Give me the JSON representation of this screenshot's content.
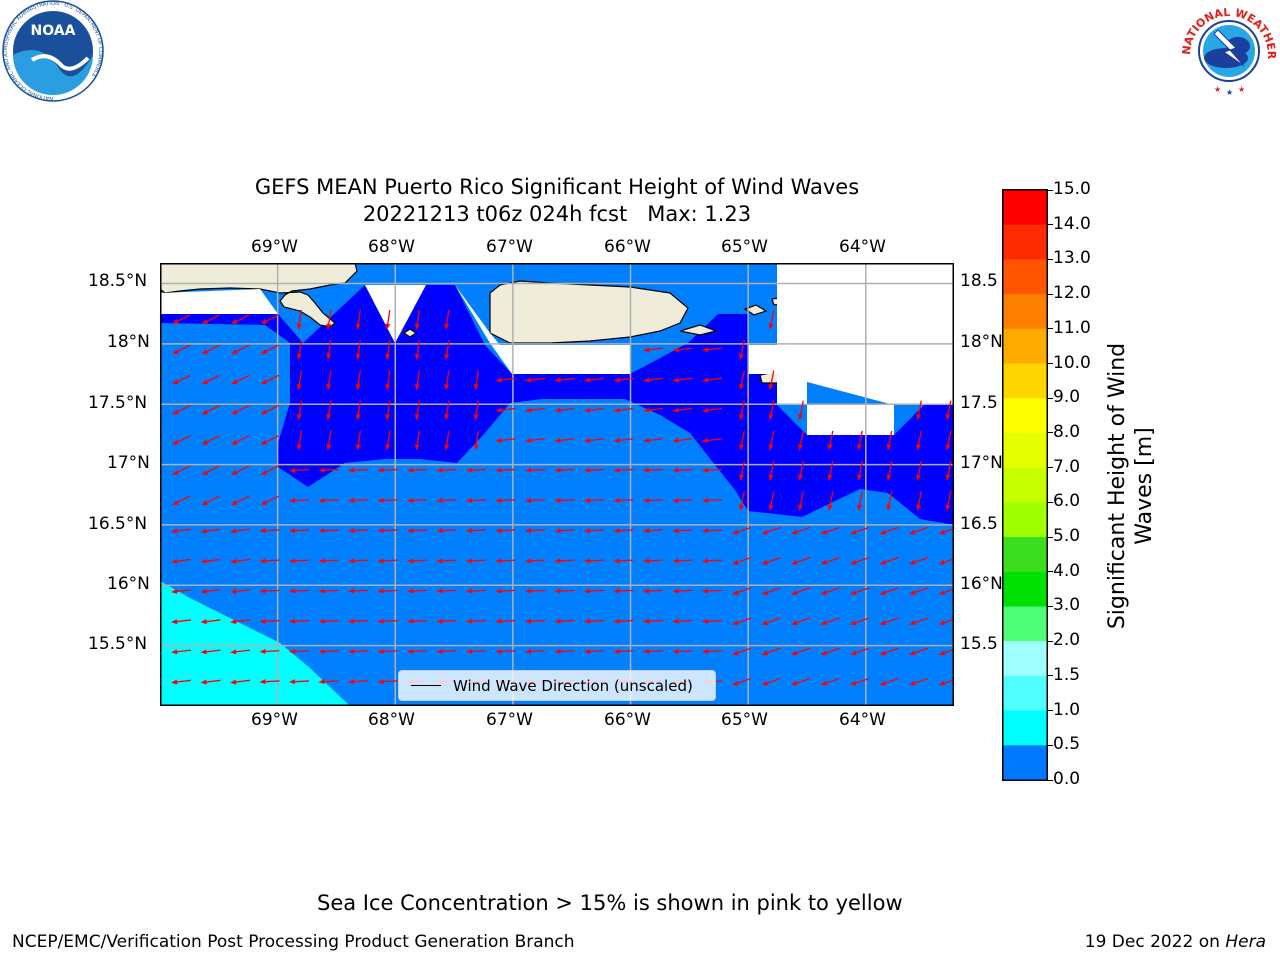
{
  "title_line1": "GEFS MEAN Puerto Rico Significant Height of Wind Waves",
  "title_line2": "20221213 t06z 024h fcst   Max: 1.23",
  "lon_labels": [
    "69°W",
    "68°W",
    "67°W",
    "66°W",
    "65°W",
    "64°W"
  ],
  "lat_labels_left": [
    "18.5°N",
    "18°N",
    "17.5°N",
    "17°N",
    "16.5°N",
    "16°N",
    "15.5°N"
  ],
  "lat_labels_right": [
    "18.5",
    "18°N",
    "17.5",
    "17°N",
    "16.5",
    "16°N",
    "15.5"
  ],
  "legend_label": "Wind Wave Direction (unscaled)",
  "colorbar": {
    "label_line1": "Significant Height of Wind",
    "label_line2": "Waves [m]",
    "ticks": [
      "15.0",
      "14.0",
      "13.0",
      "12.0",
      "11.0",
      "10.0",
      "9.0",
      "8.0",
      "7.0",
      "6.0",
      "5.0",
      "4.0",
      "3.0",
      "2.0",
      "1.5",
      "1.0",
      "0.5",
      "0.0"
    ],
    "colors": [
      "#ff0000",
      "#ff2a00",
      "#ff5500",
      "#ff8000",
      "#ffaa00",
      "#ffd500",
      "#ffff00",
      "#e6ff00",
      "#c8ff00",
      "#a0ff00",
      "#3cdc1e",
      "#00e000",
      "#50ff78",
      "#a0ffff",
      "#50ffff",
      "#00ffff",
      "#0078ff",
      "#0000ff"
    ],
    "colors_order_note_visible": ""
  },
  "map_colors": {
    "land": "#efedd9",
    "level_0": "#0000ff",
    "level_05": "#0080ff",
    "level_10": "#00ffff",
    "arrow": "#ff0000",
    "grid": "#b0b0b0"
  },
  "ice_note": "Sea Ice Concentration > 15% is shown in pink to yellow",
  "footer_left": "NCEP/EMC/Verification Post Processing Product Generation Branch",
  "footer_right_date": "19 Dec 2022 on ",
  "footer_right_host": "Hera",
  "logo_left_text": "NOAA",
  "logo_left_ring_text": "NATIONAL OCEANIC AND ATMOSPHERIC ADMINISTRATION · U.S. DEPARTMENT OF COMMERCE",
  "logo_right_ring_text": "NATIONAL WEATHER SERVICE",
  "chart_data": {
    "type": "heatmap",
    "title": "GEFS MEAN Puerto Rico Significant Height of Wind Waves",
    "subtitle": "20221213 t06z 024h fcst   Max: 1.23",
    "lon_range": [
      -70,
      -63.25
    ],
    "lat_range": [
      15.0,
      18.67
    ],
    "lon_ticks": [
      -69,
      -68,
      -67,
      -66,
      -65,
      -64
    ],
    "lat_ticks": [
      15.5,
      16.0,
      16.5,
      17.0,
      17.5,
      18.0,
      18.5
    ],
    "levels_m": [
      0.0,
      0.5,
      1.0,
      1.5,
      2.0,
      3.0,
      4.0,
      5.0,
      6.0,
      7.0,
      8.0,
      9.0,
      10.0,
      11.0,
      12.0,
      13.0,
      14.0,
      15.0
    ],
    "max_value_m": 1.23,
    "grid": true,
    "legend_position": "bottom-center"
  }
}
